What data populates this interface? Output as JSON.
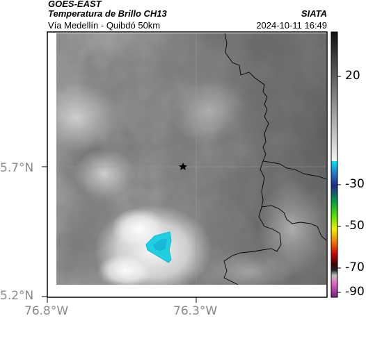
{
  "header": {
    "source": "GOES-EAST",
    "product": "Temperatura de Brillo CH13",
    "region": "Vía Medellín - Quibdó 50km",
    "org": "SIATA",
    "timestamp": "2024-10-11 16:49"
  },
  "axes": {
    "lat_ticks": [
      "5.7°N",
      "5.2°N"
    ],
    "lon_ticks": [
      "76.8°W",
      "76.3°W"
    ]
  },
  "colorbar": {
    "tick_labels": [
      "20",
      "-30",
      "-50",
      "-70",
      "-90"
    ]
  },
  "markers": {
    "station": "star-icon"
  },
  "colors": {
    "cold_cloud": "#1fd0e0",
    "coastline": "#000000"
  }
}
